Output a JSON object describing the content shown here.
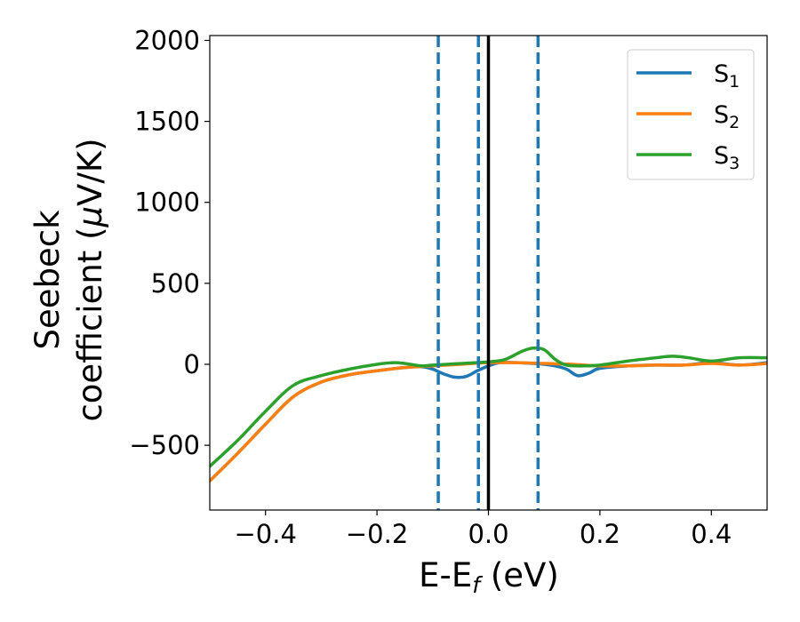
{
  "chart_data": {
    "type": "line",
    "title": "",
    "xlabel": {
      "main": "E-E",
      "sub": "f",
      "unit": " (eV)"
    },
    "ylabel": {
      "line1": "Seebeck",
      "line2": "coefficient  (",
      "mu": "μ",
      "unit": "V/K)"
    },
    "xlim": [
      -0.5,
      0.5
    ],
    "ylim": [
      -900,
      2030
    ],
    "xticks": [
      -0.4,
      -0.2,
      0.0,
      0.2,
      0.4
    ],
    "xtick_labels": [
      "−0.4",
      "−0.2",
      "0.0",
      "0.2",
      "0.4"
    ],
    "yticks": [
      -500,
      0,
      500,
      1000,
      1500,
      2000
    ],
    "ytick_labels": [
      "−500",
      "0",
      "500",
      "1000",
      "1500",
      "2000"
    ],
    "grid": false,
    "legend_position": "top-right",
    "colors": {
      "S1": "#1f77b4",
      "S2": "#ff7f0e",
      "S3": "#2ca02c",
      "fermi": "#000000",
      "band_edges": "#1f77b4"
    },
    "series": [
      {
        "name": "S1",
        "name_base": "S",
        "name_sub": "1",
        "x": [
          -0.5,
          -0.45,
          -0.4,
          -0.35,
          -0.3,
          -0.25,
          -0.2,
          -0.15,
          -0.12,
          -0.1,
          -0.08,
          -0.06,
          -0.04,
          -0.02,
          0.0,
          0.02,
          0.05,
          0.08,
          0.1,
          0.12,
          0.14,
          0.16,
          0.18,
          0.2,
          0.25,
          0.3,
          0.35,
          0.4,
          0.45,
          0.5
        ],
        "y": [
          -720,
          -550,
          -370,
          -200,
          -110,
          -65,
          -40,
          -20,
          -15,
          -30,
          -60,
          -80,
          -75,
          -40,
          -10,
          10,
          10,
          5,
          0,
          -10,
          -30,
          -70,
          -55,
          -25,
          -10,
          -5,
          -5,
          10,
          -5,
          10
        ]
      },
      {
        "name": "S2",
        "name_base": "S",
        "name_sub": "2",
        "x": [
          -0.5,
          -0.45,
          -0.4,
          -0.35,
          -0.3,
          -0.25,
          -0.2,
          -0.15,
          -0.1,
          -0.05,
          0.0,
          0.05,
          0.1,
          0.15,
          0.2,
          0.25,
          0.3,
          0.35,
          0.4,
          0.45,
          0.5
        ],
        "y": [
          -720,
          -550,
          -370,
          -200,
          -110,
          -65,
          -40,
          -20,
          -10,
          0,
          10,
          10,
          5,
          0,
          -10,
          -10,
          -5,
          -5,
          5,
          -5,
          5
        ]
      },
      {
        "name": "S3",
        "name_base": "S",
        "name_sub": "3",
        "x": [
          -0.5,
          -0.45,
          -0.4,
          -0.35,
          -0.3,
          -0.25,
          -0.2,
          -0.17,
          -0.15,
          -0.12,
          -0.1,
          -0.05,
          0.0,
          0.03,
          0.06,
          0.08,
          0.1,
          0.12,
          0.14,
          0.17,
          0.2,
          0.25,
          0.3,
          0.33,
          0.36,
          0.4,
          0.45,
          0.5
        ],
        "y": [
          -630,
          -470,
          -290,
          -130,
          -70,
          -30,
          0,
          10,
          5,
          -10,
          -5,
          5,
          15,
          30,
          80,
          100,
          90,
          30,
          -5,
          -10,
          -5,
          20,
          40,
          50,
          40,
          20,
          40,
          40
        ]
      }
    ],
    "vlines": [
      {
        "x": -0.09,
        "style": "dashed"
      },
      {
        "x": -0.018,
        "style": "dashed"
      },
      {
        "x": 0.0,
        "style": "solid"
      },
      {
        "x": 0.089,
        "style": "dashed"
      }
    ]
  }
}
